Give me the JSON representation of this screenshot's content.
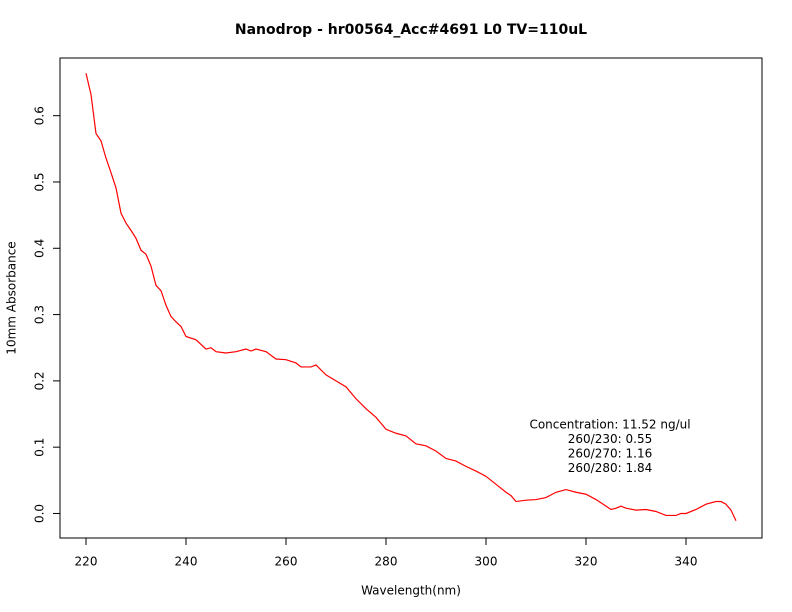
{
  "chart_data": {
    "type": "line",
    "title": "Nanodrop - hr00564_Acc#4691  L0  TV=110uL",
    "x_label": "Wavelength(nm)",
    "y_label": "10mm Absorbance",
    "x": [
      220,
      221,
      222,
      223,
      224,
      225,
      226,
      227,
      228,
      229,
      230,
      231,
      232,
      233,
      234,
      235,
      236,
      237,
      238,
      239,
      240,
      242,
      244,
      245,
      246,
      248,
      250,
      252,
      253,
      254,
      256,
      258,
      260,
      262,
      263,
      265,
      266,
      268,
      270,
      272,
      274,
      276,
      278,
      280,
      282,
      284,
      286,
      288,
      290,
      292,
      294,
      296,
      298,
      300,
      302,
      304,
      305,
      306,
      308,
      310,
      312,
      314,
      316,
      318,
      320,
      322,
      324,
      325,
      326,
      327,
      328,
      330,
      332,
      334,
      336,
      338,
      339,
      340,
      342,
      344,
      346,
      347,
      348,
      349,
      350
    ],
    "series": [
      {
        "name": "Absorbance",
        "color": "#ff0000",
        "values": [
          0.664,
          0.632,
          0.573,
          0.562,
          0.536,
          0.514,
          0.491,
          0.453,
          0.438,
          0.427,
          0.415,
          0.397,
          0.391,
          0.373,
          0.344,
          0.336,
          0.314,
          0.297,
          0.289,
          0.282,
          0.267,
          0.262,
          0.248,
          0.25,
          0.244,
          0.242,
          0.244,
          0.248,
          0.245,
          0.248,
          0.244,
          0.233,
          0.232,
          0.227,
          0.221,
          0.221,
          0.224,
          0.209,
          0.2,
          0.191,
          0.173,
          0.158,
          0.145,
          0.127,
          0.121,
          0.117,
          0.105,
          0.102,
          0.094,
          0.083,
          0.079,
          0.071,
          0.064,
          0.056,
          0.044,
          0.032,
          0.027,
          0.018,
          0.02,
          0.021,
          0.024,
          0.032,
          0.036,
          0.032,
          0.029,
          0.021,
          0.011,
          0.006,
          0.008,
          0.011,
          0.008,
          0.005,
          0.006,
          0.003,
          -0.003,
          -0.003,
          0,
          0,
          0.006,
          0.014,
          0.018,
          0.018,
          0.014,
          0.005,
          -0.011
        ]
      }
    ],
    "xlim": [
      214.8,
      355.2
    ],
    "ylim": [
      -0.037,
      0.687
    ],
    "xticks": [
      220,
      240,
      260,
      280,
      300,
      320,
      340
    ],
    "yticks": [
      {
        "value": 0,
        "label": "0.0"
      },
      0.1,
      0.2,
      0.3,
      0.4,
      0.5,
      0.6
    ],
    "annotations": [
      "Concentration: 11.52 ng/ul",
      "260/230: 0.55",
      "260/270: 1.16",
      "260/280: 1.84"
    ]
  }
}
